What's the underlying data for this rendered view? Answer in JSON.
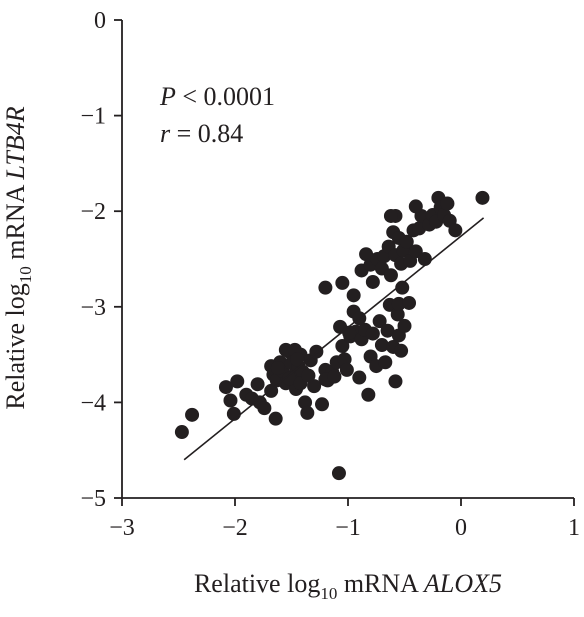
{
  "chart_data": {
    "type": "scatter",
    "xlabel": {
      "prefix": "Relative log",
      "sub": "10",
      "mid": " mRNA ",
      "gene": "ALOX5"
    },
    "ylabel": {
      "prefix": "Relative log",
      "sub": "10",
      "mid": " mRNA ",
      "gene": "LTB4R"
    },
    "xlim": [
      -3,
      1
    ],
    "ylim": [
      -5,
      0
    ],
    "xticks": [
      -3,
      -2,
      -1,
      0,
      1
    ],
    "yticks": [
      0,
      -1,
      -2,
      -3,
      -4,
      -5
    ],
    "xtick_labels": [
      "−3",
      "−2",
      "−1",
      "0",
      "1"
    ],
    "ytick_labels": [
      "0",
      "−1",
      "−2",
      "−3",
      "−4",
      "−5"
    ],
    "annotations": {
      "p_symbol": "P",
      "p_rest": " < 0.0001",
      "r_symbol": "r",
      "r_rest": " = 0.84"
    },
    "fit_line": {
      "x": [
        -2.45,
        0.2
      ],
      "y": [
        -4.6,
        -2.07
      ]
    },
    "grid": false,
    "points": [
      {
        "x": -2.47,
        "y": -4.31
      },
      {
        "x": -2.38,
        "y": -4.13
      },
      {
        "x": -2.08,
        "y": -3.84
      },
      {
        "x": -2.04,
        "y": -3.98
      },
      {
        "x": -1.98,
        "y": -3.78
      },
      {
        "x": -2.01,
        "y": -4.12
      },
      {
        "x": -1.9,
        "y": -3.92
      },
      {
        "x": -1.85,
        "y": -3.96
      },
      {
        "x": -1.8,
        "y": -3.81
      },
      {
        "x": -1.78,
        "y": -4.0
      },
      {
        "x": -1.74,
        "y": -4.06
      },
      {
        "x": -1.68,
        "y": -3.88
      },
      {
        "x": -1.64,
        "y": -4.17
      },
      {
        "x": -1.68,
        "y": -3.62
      },
      {
        "x": -1.66,
        "y": -3.71
      },
      {
        "x": -1.63,
        "y": -3.77
      },
      {
        "x": -1.6,
        "y": -3.58
      },
      {
        "x": -1.58,
        "y": -3.67
      },
      {
        "x": -1.55,
        "y": -3.8
      },
      {
        "x": -1.52,
        "y": -3.47
      },
      {
        "x": -1.5,
        "y": -3.59
      },
      {
        "x": -1.48,
        "y": -3.72
      },
      {
        "x": -1.46,
        "y": -3.86
      },
      {
        "x": -1.44,
        "y": -3.62
      },
      {
        "x": -1.42,
        "y": -3.5
      },
      {
        "x": -1.4,
        "y": -3.68
      },
      {
        "x": -1.38,
        "y": -4.0
      },
      {
        "x": -1.36,
        "y": -4.11
      },
      {
        "x": -1.33,
        "y": -3.56
      },
      {
        "x": -1.3,
        "y": -3.83
      },
      {
        "x": -1.28,
        "y": -3.47
      },
      {
        "x": -1.23,
        "y": -4.02
      },
      {
        "x": -1.2,
        "y": -3.66
      },
      {
        "x": -1.18,
        "y": -3.77
      },
      {
        "x": -1.14,
        "y": -3.68
      },
      {
        "x": -1.1,
        "y": -3.58
      },
      {
        "x": -1.07,
        "y": -3.21
      },
      {
        "x": -1.05,
        "y": -3.41
      },
      {
        "x": -1.03,
        "y": -3.55
      },
      {
        "x": -1.01,
        "y": -3.66
      },
      {
        "x": -0.98,
        "y": -3.31
      },
      {
        "x": -0.95,
        "y": -3.05
      },
      {
        "x": -0.93,
        "y": -3.26
      },
      {
        "x": -0.9,
        "y": -3.74
      },
      {
        "x": -0.88,
        "y": -3.34
      },
      {
        "x": -0.85,
        "y": -3.24
      },
      {
        "x": -0.82,
        "y": -3.92
      },
      {
        "x": -0.8,
        "y": -3.52
      },
      {
        "x": -0.78,
        "y": -3.28
      },
      {
        "x": -0.75,
        "y": -3.62
      },
      {
        "x": -0.72,
        "y": -3.15
      },
      {
        "x": -0.7,
        "y": -3.4
      },
      {
        "x": -0.67,
        "y": -3.58
      },
      {
        "x": -0.65,
        "y": -3.25
      },
      {
        "x": -0.63,
        "y": -2.98
      },
      {
        "x": -0.6,
        "y": -3.42
      },
      {
        "x": -0.58,
        "y": -3.78
      },
      {
        "x": -0.56,
        "y": -3.08
      },
      {
        "x": -0.55,
        "y": -3.3
      },
      {
        "x": -0.53,
        "y": -3.46
      },
      {
        "x": -0.55,
        "y": -2.97
      },
      {
        "x": -0.52,
        "y": -2.8
      },
      {
        "x": -0.5,
        "y": -3.2
      },
      {
        "x": -0.46,
        "y": -2.96
      },
      {
        "x": -1.2,
        "y": -2.8
      },
      {
        "x": -1.05,
        "y": -2.75
      },
      {
        "x": -0.95,
        "y": -2.88
      },
      {
        "x": -0.88,
        "y": -2.62
      },
      {
        "x": -0.84,
        "y": -2.45
      },
      {
        "x": -0.8,
        "y": -2.56
      },
      {
        "x": -0.78,
        "y": -2.74
      },
      {
        "x": -0.74,
        "y": -2.5
      },
      {
        "x": -0.7,
        "y": -2.6
      },
      {
        "x": -0.68,
        "y": -2.47
      },
      {
        "x": -0.64,
        "y": -2.37
      },
      {
        "x": -0.62,
        "y": -2.67
      },
      {
        "x": -0.6,
        "y": -2.22
      },
      {
        "x": -0.58,
        "y": -2.46
      },
      {
        "x": -0.55,
        "y": -2.28
      },
      {
        "x": -0.53,
        "y": -2.55
      },
      {
        "x": -0.51,
        "y": -2.41
      },
      {
        "x": -0.48,
        "y": -2.32
      },
      {
        "x": -0.45,
        "y": -2.52
      },
      {
        "x": -0.42,
        "y": -2.2
      },
      {
        "x": -0.4,
        "y": -2.42
      },
      {
        "x": -0.37,
        "y": -2.18
      },
      {
        "x": -0.35,
        "y": -2.05
      },
      {
        "x": -0.32,
        "y": -2.5
      },
      {
        "x": -0.28,
        "y": -2.14
      },
      {
        "x": -0.25,
        "y": -2.04
      },
      {
        "x": -0.22,
        "y": -2.11
      },
      {
        "x": -0.2,
        "y": -1.86
      },
      {
        "x": -0.18,
        "y": -1.96
      },
      {
        "x": -0.15,
        "y": -2.04
      },
      {
        "x": -0.12,
        "y": -1.92
      },
      {
        "x": -0.1,
        "y": -2.1
      },
      {
        "x": -0.05,
        "y": -2.2
      },
      {
        "x": -0.58,
        "y": -2.05
      },
      {
        "x": -0.62,
        "y": -2.05
      },
      {
        "x": -0.4,
        "y": -1.95
      },
      {
        "x": 0.19,
        "y": -1.86
      },
      {
        "x": -1.08,
        "y": -4.74
      },
      {
        "x": -1.55,
        "y": -3.45
      },
      {
        "x": -1.47,
        "y": -3.45
      },
      {
        "x": -1.62,
        "y": -3.64
      },
      {
        "x": -1.52,
        "y": -3.75
      },
      {
        "x": -1.45,
        "y": -3.55
      },
      {
        "x": -1.42,
        "y": -3.8
      },
      {
        "x": -1.35,
        "y": -3.72
      },
      {
        "x": -1.2,
        "y": -3.76
      },
      {
        "x": -1.12,
        "y": -3.73
      },
      {
        "x": -0.99,
        "y": -3.27
      },
      {
        "x": -0.9,
        "y": -3.12
      }
    ]
  }
}
